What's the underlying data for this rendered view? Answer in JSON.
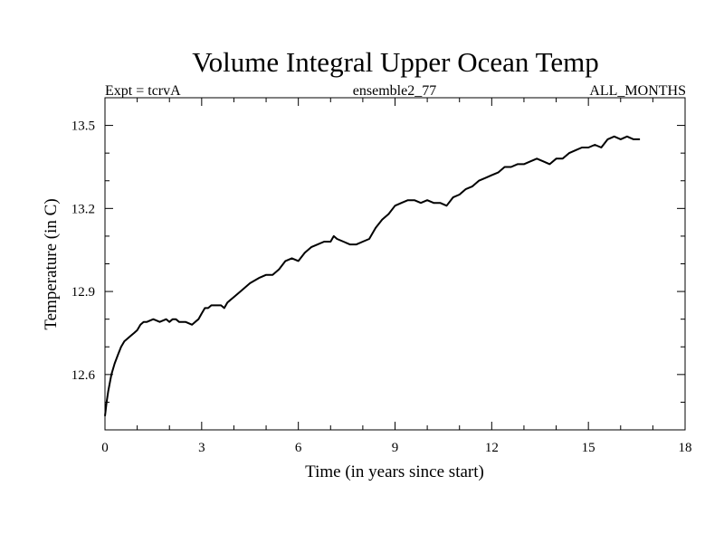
{
  "chart_data": {
    "type": "line",
    "title": "Volume Integral Upper Ocean Temp",
    "subtitle_left": "Expt = tcrvA",
    "subtitle_center": "ensemble2_77",
    "subtitle_right": "ALL_MONTHS",
    "xlabel": "Time (in years since start)",
    "ylabel": "Temperature (in C)",
    "xlim": [
      0,
      18
    ],
    "ylim": [
      12.4,
      13.6
    ],
    "xticks": [
      0,
      3,
      6,
      9,
      12,
      15,
      18
    ],
    "xtick_labels": [
      "0",
      "3",
      "6",
      "9",
      "12",
      "15",
      "18"
    ],
    "yticks": [
      12.6,
      12.9,
      13.2,
      13.5
    ],
    "ytick_labels": [
      "12.6",
      "12.9",
      "13.2",
      "13.5"
    ],
    "grid": false,
    "series": [
      {
        "name": "ensemble2_77",
        "x": [
          0.0,
          0.05,
          0.1,
          0.2,
          0.3,
          0.4,
          0.5,
          0.6,
          0.7,
          0.8,
          0.9,
          1.0,
          1.1,
          1.2,
          1.3,
          1.5,
          1.7,
          1.9,
          2.0,
          2.1,
          2.2,
          2.3,
          2.5,
          2.7,
          2.8,
          2.9,
          3.0,
          3.1,
          3.2,
          3.3,
          3.4,
          3.5,
          3.6,
          3.7,
          3.8,
          4.0,
          4.2,
          4.5,
          4.8,
          5.0,
          5.2,
          5.4,
          5.6,
          5.8,
          6.0,
          6.2,
          6.4,
          6.6,
          6.8,
          7.0,
          7.1,
          7.2,
          7.4,
          7.6,
          7.8,
          8.0,
          8.2,
          8.4,
          8.6,
          8.8,
          9.0,
          9.2,
          9.4,
          9.6,
          9.8,
          10.0,
          10.2,
          10.4,
          10.6,
          10.8,
          11.0,
          11.2,
          11.4,
          11.6,
          11.8,
          12.0,
          12.2,
          12.4,
          12.6,
          12.8,
          13.0,
          13.2,
          13.4,
          13.6,
          13.8,
          14.0,
          14.2,
          14.4,
          14.6,
          14.8,
          15.0,
          15.2,
          15.4,
          15.6,
          15.8,
          16.0,
          16.2,
          16.4,
          16.6
        ],
        "values": [
          12.45,
          12.5,
          12.54,
          12.6,
          12.64,
          12.67,
          12.7,
          12.72,
          12.73,
          12.74,
          12.75,
          12.76,
          12.78,
          12.79,
          12.79,
          12.8,
          12.79,
          12.8,
          12.79,
          12.8,
          12.8,
          12.79,
          12.79,
          12.78,
          12.79,
          12.8,
          12.82,
          12.84,
          12.84,
          12.85,
          12.85,
          12.85,
          12.85,
          12.84,
          12.86,
          12.88,
          12.9,
          12.93,
          12.95,
          12.96,
          12.96,
          12.98,
          13.01,
          13.02,
          13.01,
          13.04,
          13.06,
          13.07,
          13.08,
          13.08,
          13.1,
          13.09,
          13.08,
          13.07,
          13.07,
          13.08,
          13.09,
          13.13,
          13.16,
          13.18,
          13.21,
          13.22,
          13.23,
          13.23,
          13.22,
          13.23,
          13.22,
          13.22,
          13.21,
          13.24,
          13.25,
          13.27,
          13.28,
          13.3,
          13.31,
          13.32,
          13.33,
          13.35,
          13.35,
          13.36,
          13.36,
          13.37,
          13.38,
          13.37,
          13.36,
          13.38,
          13.38,
          13.4,
          13.41,
          13.42,
          13.42,
          13.43,
          13.42,
          13.45,
          13.46,
          13.45,
          13.46,
          13.45,
          13.45
        ]
      }
    ]
  }
}
